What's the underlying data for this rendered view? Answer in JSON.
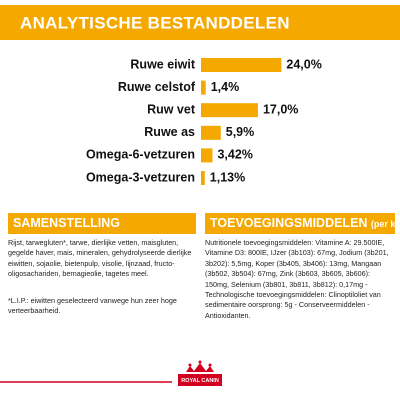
{
  "chart_data": {
    "type": "bar",
    "title": "ANALYTISCHE BESTANDDELEN",
    "categories": [
      "Ruwe eiwit",
      "Ruwe celstof",
      "Ruw vet",
      "Ruwe as",
      "Omega-6-vetzuren",
      "Omega-3-vetzuren"
    ],
    "values": [
      24.0,
      1.4,
      17.0,
      5.9,
      3.42,
      1.13
    ],
    "value_labels": [
      "24,0%",
      "1,4%",
      "17,0%",
      "5,9%",
      "3,42%",
      "1,13%"
    ],
    "color": "#f5a800"
  },
  "composition": {
    "title": "SAMENSTELLING",
    "text": "Rijst, tarwegluten*, tarwe, dierlijke vetten, maisgluten, gegelde haver, mais, mineralen, gehydrolyseerde dierlijke eiwitten, sojaolie, bietenpulp, visolie, lijnzaad, fructo-oligosachariden, bernagieolie, tagetes meel.",
    "note": "*L.I.P.: eiwitten geselecteerd vanwege hun zeer hoge verteerbaarheid."
  },
  "additives": {
    "title": "TOEVOEGINGSMIDDELEN",
    "unit": "(per kg)",
    "text": "Nutritionele toevoegingsmiddelen: Vitamine A: 29.500IE, Vitamine D3: 800IE, IJzer (3b103): 67mg, Jodium (3b201, 3b202): 5,5mg, Koper (3b405, 3b406): 13mg, Mangaan (3b502, 3b504): 67mg, Zink (3b603, 3b605, 3b606): 150mg, Selenium (3b801, 3b811, 3b812): 0,17mg - Technologische toevoegingsmiddelen: Clinoptiloliet van sedimentaire oorsprong: 5g - Conserveermiddelen - Antioxidanten."
  }
}
